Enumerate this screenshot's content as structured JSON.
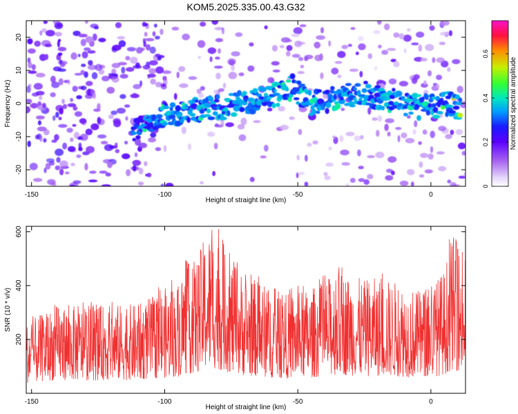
{
  "title": "KOM5.2025.335.00.43.G32",
  "chart_data": [
    {
      "type": "heatmap",
      "xlabel": "Height of straight line (km)",
      "ylabel": "Frequency (Hz)",
      "xlim": [
        -152,
        13
      ],
      "ylim": [
        -25,
        25
      ],
      "x_ticks": [
        -150,
        -100,
        -50,
        0
      ],
      "y_ticks": [
        -20,
        -10,
        0,
        10,
        20
      ],
      "colorbar": {
        "label": "Normalized spectral amplitude",
        "range": [
          0,
          0.75
        ],
        "ticks": [
          0,
          0.2,
          0.4,
          0.6
        ]
      },
      "ridge": {
        "description": "dominant frequency band",
        "points": [
          [
            -110,
            -8
          ],
          [
            -100,
            -3
          ],
          [
            -85,
            -2
          ],
          [
            -70,
            0
          ],
          [
            -60,
            2
          ],
          [
            -52,
            5
          ],
          [
            -45,
            0
          ],
          [
            -35,
            2
          ],
          [
            -25,
            3
          ],
          [
            -15,
            1
          ],
          [
            -5,
            -1
          ],
          [
            0,
            -1
          ],
          [
            5,
            0
          ],
          [
            10,
            -1
          ]
        ]
      }
    },
    {
      "type": "line",
      "xlabel": "Height of straight line (km)",
      "ylabel": "SNR (10 * v/v)",
      "xlim": [
        -152,
        13
      ],
      "ylim": [
        0,
        620
      ],
      "x_ticks": [
        -150,
        -100,
        -50,
        0
      ],
      "y_ticks": [
        200,
        400,
        600
      ],
      "series_color": "#f03030",
      "envelope": {
        "description": "approximate upper level of noisy SNR trace",
        "points": [
          [
            -152,
            260
          ],
          [
            -140,
            330
          ],
          [
            -130,
            320
          ],
          [
            -120,
            330
          ],
          [
            -110,
            330
          ],
          [
            -100,
            390
          ],
          [
            -95,
            410
          ],
          [
            -92,
            480
          ],
          [
            -88,
            500
          ],
          [
            -85,
            580
          ],
          [
            -82,
            620
          ],
          [
            -78,
            560
          ],
          [
            -75,
            500
          ],
          [
            -70,
            440
          ],
          [
            -65,
            420
          ],
          [
            -60,
            390
          ],
          [
            -55,
            370
          ],
          [
            -50,
            380
          ],
          [
            -45,
            390
          ],
          [
            -40,
            420
          ],
          [
            -35,
            460
          ],
          [
            -30,
            440
          ],
          [
            -25,
            420
          ],
          [
            -20,
            430
          ],
          [
            -15,
            420
          ],
          [
            -10,
            410
          ],
          [
            -5,
            380
          ],
          [
            0,
            400
          ],
          [
            5,
            460
          ],
          [
            8,
            590
          ],
          [
            10,
            560
          ],
          [
            13,
            480
          ]
        ]
      }
    }
  ],
  "colors": {
    "line": "#f03030",
    "colormap": [
      "#ffffff",
      "#cdb6f7",
      "#8a33e6",
      "#3300ff",
      "#00a8ff",
      "#00e0b0",
      "#33ff00",
      "#c8e600",
      "#ff8800",
      "#ff0033",
      "#ff00cc"
    ]
  }
}
